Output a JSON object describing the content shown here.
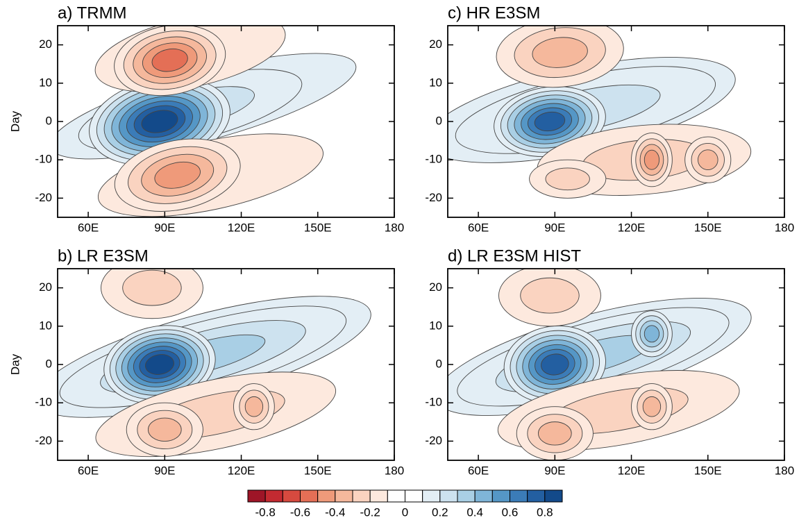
{
  "chart_data": [
    {
      "type": "contour",
      "title": "a) TRMM",
      "ylabel": "Day",
      "xlim": [
        48,
        180
      ],
      "ylim": [
        -25,
        25
      ],
      "xticks": [
        {
          "value": 60,
          "label": "60E"
        },
        {
          "value": 90,
          "label": "90E"
        },
        {
          "value": 120,
          "label": "120E"
        },
        {
          "value": 150,
          "label": "150E"
        },
        180
      ],
      "yticks": [
        -20,
        -10,
        0,
        10,
        20
      ]
    },
    {
      "type": "contour",
      "title": "b) LR E3SM",
      "ylabel": "Day",
      "xlim": [
        48,
        180
      ],
      "ylim": [
        -25,
        25
      ],
      "xticks": [
        {
          "value": 60,
          "label": "60E"
        },
        {
          "value": 90,
          "label": "90E"
        },
        {
          "value": 120,
          "label": "120E"
        },
        {
          "value": 150,
          "label": "150E"
        },
        180
      ],
      "yticks": [
        -20,
        -10,
        0,
        10,
        20
      ]
    },
    {
      "type": "contour",
      "title": "c) HR E3SM",
      "xlim": [
        48,
        180
      ],
      "ylim": [
        -25,
        25
      ],
      "xticks": [
        {
          "value": 60,
          "label": "60E"
        },
        {
          "value": 90,
          "label": "90E"
        },
        {
          "value": 120,
          "label": "120E"
        },
        {
          "value": 150,
          "label": "150E"
        },
        180
      ],
      "yticks": [
        -20,
        -10,
        0,
        10,
        20
      ]
    },
    {
      "type": "contour",
      "title": "d) LR E3SM HIST",
      "xlim": [
        48,
        180
      ],
      "ylim": [
        -25,
        25
      ],
      "xticks": [
        {
          "value": 60,
          "label": "60E"
        },
        {
          "value": 90,
          "label": "90E"
        },
        {
          "value": 120,
          "label": "120E"
        },
        {
          "value": 150,
          "label": "150E"
        },
        180
      ],
      "yticks": [
        -20,
        -10,
        0,
        10,
        20
      ]
    }
  ],
  "colorbar": {
    "lim": [
      -0.9,
      0.9
    ],
    "colors": [
      "#9e1527",
      "#c32a31",
      "#d64a3f",
      "#e46f56",
      "#ef9a7a",
      "#f5b89c",
      "#fad3c0",
      "#fde9de",
      "#ffffff",
      "#ffffff",
      "#e3eef5",
      "#cde2ef",
      "#a9cfe5",
      "#7fb5d8",
      "#5597c6",
      "#3b7cb8",
      "#235fa1",
      "#134a8a"
    ],
    "ticks": [
      -0.8,
      -0.6,
      -0.4,
      -0.2,
      0,
      0.2,
      0.4,
      0.6,
      0.8
    ]
  }
}
